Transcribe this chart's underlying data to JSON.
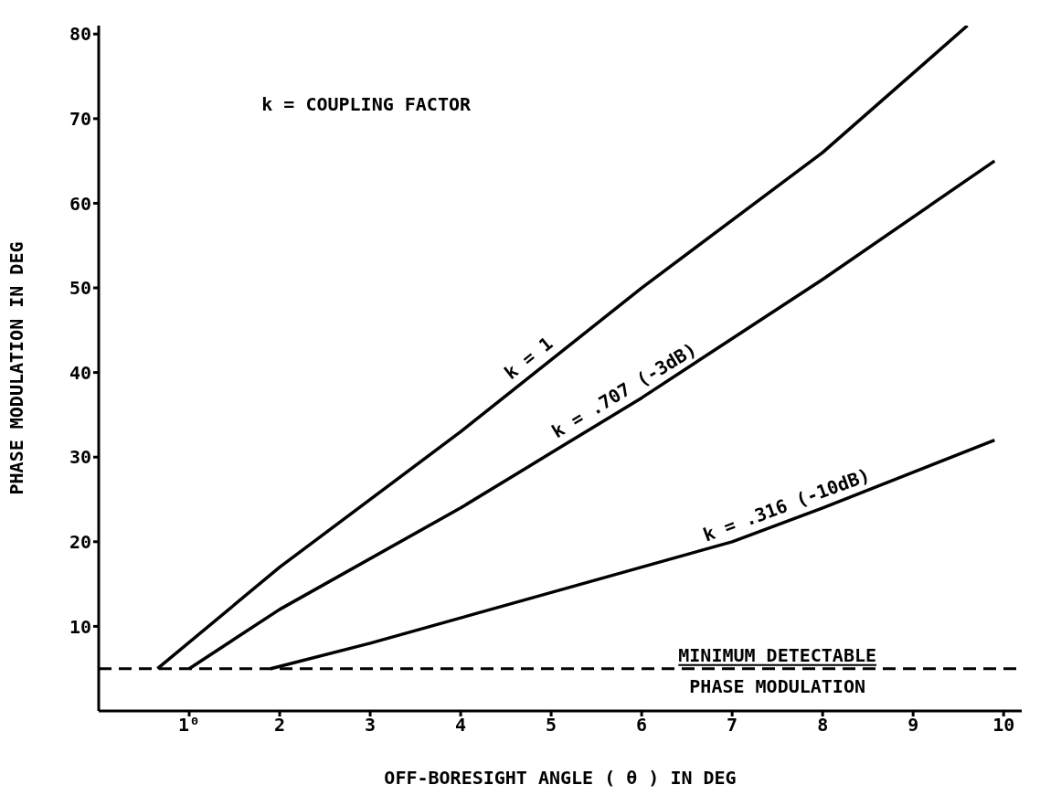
{
  "chart_data": {
    "type": "line",
    "xlabel": "OFF-BORESIGHT ANGLE ( θ ) IN DEG",
    "ylabel": "PHASE MODULATION IN DEG",
    "annotations": [
      "k  = COUPLING FACTOR"
    ],
    "xlim": [
      0,
      10.2
    ],
    "ylim": [
      0,
      81
    ],
    "xticks": [
      {
        "value": 1,
        "label": "1⁰"
      },
      2,
      3,
      4,
      5,
      6,
      7,
      8,
      9,
      10
    ],
    "yticks": [
      10,
      20,
      30,
      40,
      50,
      60,
      70,
      80
    ],
    "marker": "none",
    "line_style": "solid",
    "series": [
      {
        "name": "k = 1",
        "color": "#000000",
        "x": [
          0.65,
          2,
          4,
          6,
          8,
          9.6
        ],
        "values": [
          5,
          17,
          33,
          50,
          66,
          81
        ]
      },
      {
        "name": "k = .707 (-3dB)",
        "color": "#000000",
        "x": [
          1,
          2,
          4,
          5,
          6,
          8,
          9.9
        ],
        "values": [
          5,
          12,
          24,
          30.5,
          37,
          51,
          65
        ]
      },
      {
        "name": "k = .316 (-10dB)",
        "color": "#000000",
        "x": [
          1.9,
          3,
          5,
          7,
          8,
          9.9
        ],
        "values": [
          5,
          8,
          14,
          20,
          24,
          32
        ]
      }
    ],
    "ref_lines": [
      {
        "axis": "y",
        "value": 5,
        "label": "MINIMUM DETECTABLE\nPHASE MODULATION",
        "line_style": "dashed",
        "color": "#000000"
      }
    ]
  }
}
